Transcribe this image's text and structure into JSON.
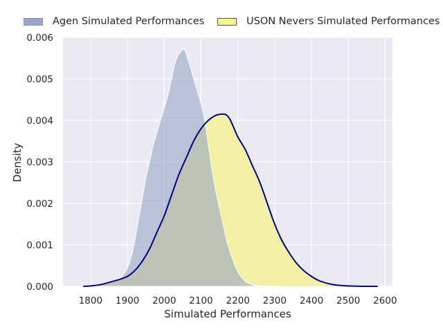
{
  "chart_data": {
    "type": "area",
    "xlabel": "Simulated Performances",
    "ylabel": "Density",
    "xlim": [
      1725,
      2620
    ],
    "ylim": [
      0,
      0.006
    ],
    "x_ticks": [
      1800,
      1900,
      2000,
      2100,
      2200,
      2300,
      2400,
      2500,
      2600
    ],
    "y_ticks": [
      0.0,
      0.001,
      0.002,
      0.003,
      0.004,
      0.005,
      0.006
    ],
    "y_tick_labels": [
      "0.000",
      "0.001",
      "0.002",
      "0.003",
      "0.004",
      "0.005",
      "0.006"
    ],
    "grid": true,
    "legend_position": "top",
    "series": [
      {
        "name": "Agen Simulated Performances",
        "fill": "#9aa6c6",
        "stroke": "#ffffff",
        "x": [
          1800,
          1820,
          1840,
          1860,
          1880,
          1890,
          1900,
          1910,
          1920,
          1930,
          1940,
          1950,
          1960,
          1970,
          1980,
          1990,
          2000,
          2010,
          2020,
          2030,
          2040,
          2050,
          2055,
          2060,
          2070,
          2080,
          2090,
          2100,
          2110,
          2120,
          2130,
          2140,
          2150,
          2160,
          2170,
          2180,
          2190,
          2200,
          2220,
          2240,
          2260,
          2280,
          2300,
          2320
        ],
        "y": [
          0.0,
          2e-05,
          8e-05,
          0.00014,
          0.0002,
          0.0003,
          0.00045,
          0.0007,
          0.0011,
          0.0016,
          0.0021,
          0.0026,
          0.003,
          0.0034,
          0.0037,
          0.004,
          0.0043,
          0.0046,
          0.005,
          0.0054,
          0.0056,
          0.0057,
          0.0057,
          0.0056,
          0.0053,
          0.005,
          0.0047,
          0.0044,
          0.004,
          0.0034,
          0.0028,
          0.0023,
          0.0019,
          0.0015,
          0.0011,
          0.0008,
          0.00055,
          0.00035,
          0.00012,
          4e-05,
          1e-05,
          5e-06,
          0.0,
          0.0
        ]
      },
      {
        "name": "USON Nevers Simulated Performances",
        "fill": "#f1f0a0",
        "stroke": "#000080",
        "x": [
          1780,
          1800,
          1820,
          1840,
          1860,
          1880,
          1900,
          1920,
          1940,
          1960,
          1980,
          2000,
          2020,
          2040,
          2060,
          2080,
          2100,
          2120,
          2140,
          2160,
          2170,
          2180,
          2200,
          2220,
          2240,
          2260,
          2280,
          2300,
          2320,
          2340,
          2360,
          2380,
          2400,
          2420,
          2440,
          2460,
          2480,
          2500,
          2520,
          2540,
          2560,
          2580
        ],
        "y": [
          0.0,
          1e-05,
          3e-05,
          7e-05,
          0.00012,
          0.00017,
          0.00024,
          0.00038,
          0.0006,
          0.0009,
          0.0013,
          0.0017,
          0.0022,
          0.0027,
          0.0031,
          0.0035,
          0.0038,
          0.004,
          0.00412,
          0.00415,
          0.00412,
          0.004,
          0.0036,
          0.0033,
          0.0029,
          0.0025,
          0.002,
          0.0015,
          0.0011,
          0.0008,
          0.00055,
          0.00037,
          0.00024,
          0.00014,
          8e-05,
          4e-05,
          2e-05,
          1e-05,
          5e-06,
          0.0,
          0.0,
          0.0
        ]
      }
    ]
  }
}
